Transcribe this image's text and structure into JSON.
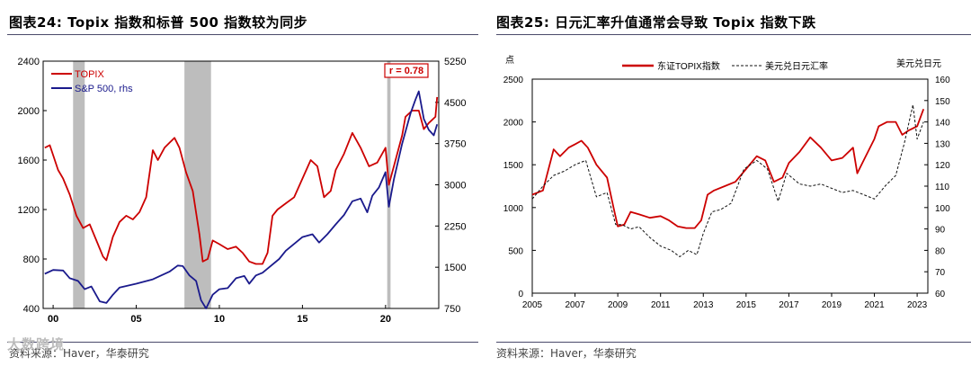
{
  "panel_left": {
    "title": "图表24:   Topix 指数和标普 500 指数较为同步",
    "source": "资料来源：Haver，华泰研究",
    "watermark": "大数跨境"
  },
  "panel_right": {
    "title": "图表25:   日元汇率升值通常会导致 Topix 指数下跌",
    "source": "资料来源：Haver，华泰研究"
  },
  "colors": {
    "red": "#cc0000",
    "navy": "#1a1a8c",
    "black": "#111111",
    "recession": "#bdbdbd",
    "rule": "#4a4a6a"
  },
  "chart_data": [
    {
      "type": "line",
      "title": "Topix 指数和标普 500 指数较为同步",
      "x_ticks": [
        "00",
        "05",
        "10",
        "15",
        "20"
      ],
      "x_tick_values": [
        2000,
        2005,
        2010,
        2015,
        2020
      ],
      "xlim": [
        1999.4,
        2023.2
      ],
      "ylim_left": [
        400,
        2400
      ],
      "yticks_left": [
        "400",
        "800",
        "1200",
        "1600",
        "2000",
        "2400"
      ],
      "ylim_right": [
        750,
        5250
      ],
      "yticks_right": [
        "750",
        "1500",
        "2250",
        "3000",
        "3750",
        "4500",
        "5250"
      ],
      "annotation": "r = 0.78",
      "recession_bands": [
        [
          2001.2,
          2001.9
        ],
        [
          2007.9,
          2009.5
        ],
        [
          2020.1,
          2020.3
        ]
      ],
      "series": [
        {
          "name": "TOPIX",
          "axis": "left",
          "color": "#cc0000",
          "x": [
            1999.5,
            1999.8,
            2000.0,
            2000.3,
            2000.6,
            2001.0,
            2001.4,
            2001.8,
            2002.2,
            2002.6,
            2003.0,
            2003.2,
            2003.6,
            2004.0,
            2004.4,
            2004.8,
            2005.2,
            2005.6,
            2006.0,
            2006.3,
            2006.7,
            2007.0,
            2007.3,
            2007.6,
            2008.0,
            2008.4,
            2008.8,
            2009.0,
            2009.3,
            2009.6,
            2010.0,
            2010.5,
            2011.0,
            2011.4,
            2011.8,
            2012.2,
            2012.6,
            2012.9,
            2013.2,
            2013.5,
            2014.0,
            2014.5,
            2015.0,
            2015.5,
            2015.9,
            2016.3,
            2016.7,
            2017.0,
            2017.5,
            2018.0,
            2018.5,
            2019.0,
            2019.5,
            2020.0,
            2020.2,
            2020.5,
            2021.0,
            2021.2,
            2021.6,
            2022.0,
            2022.3,
            2022.6,
            2023.0,
            2023.1
          ],
          "values": [
            1700,
            1720,
            1640,
            1520,
            1450,
            1320,
            1150,
            1050,
            1080,
            950,
            820,
            790,
            980,
            1100,
            1150,
            1120,
            1180,
            1300,
            1680,
            1600,
            1700,
            1740,
            1780,
            1700,
            1500,
            1350,
            1000,
            780,
            800,
            950,
            920,
            880,
            900,
            850,
            780,
            760,
            760,
            850,
            1150,
            1200,
            1250,
            1300,
            1450,
            1600,
            1550,
            1300,
            1350,
            1520,
            1650,
            1820,
            1700,
            1550,
            1580,
            1700,
            1400,
            1550,
            1800,
            1950,
            2000,
            2000,
            1850,
            1900,
            1950,
            2110
          ]
        },
        {
          "name": "S&P 500, rhs",
          "axis": "right",
          "color": "#1a1a8c",
          "x": [
            1999.5,
            2000.0,
            2000.6,
            2001.0,
            2001.5,
            2001.9,
            2002.3,
            2002.8,
            2003.2,
            2003.6,
            2004.0,
            2005.0,
            2006.0,
            2007.0,
            2007.5,
            2007.8,
            2008.2,
            2008.6,
            2008.9,
            2009.2,
            2009.6,
            2010.0,
            2010.5,
            2011.0,
            2011.5,
            2011.8,
            2012.2,
            2012.6,
            2013.0,
            2013.6,
            2014.0,
            2014.6,
            2015.0,
            2015.6,
            2016.0,
            2016.5,
            2017.0,
            2017.5,
            2018.0,
            2018.5,
            2018.9,
            2019.2,
            2019.6,
            2020.0,
            2020.2,
            2020.5,
            2021.0,
            2021.5,
            2021.8,
            2022.0,
            2022.3,
            2022.6,
            2022.9,
            2023.1
          ],
          "values": [
            1380,
            1450,
            1440,
            1300,
            1250,
            1100,
            1150,
            880,
            850,
            1000,
            1130,
            1200,
            1280,
            1420,
            1530,
            1520,
            1350,
            1250,
            900,
            750,
            1000,
            1100,
            1120,
            1300,
            1340,
            1200,
            1350,
            1400,
            1500,
            1650,
            1800,
            1950,
            2050,
            2100,
            1950,
            2100,
            2280,
            2450,
            2700,
            2750,
            2500,
            2800,
            2950,
            3230,
            2600,
            3100,
            3750,
            4300,
            4550,
            4700,
            4200,
            4000,
            3900,
            4100
          ]
        }
      ],
      "legend": [
        "TOPIX",
        "S&P 500, rhs"
      ],
      "legend_position": "top-left"
    },
    {
      "type": "line",
      "title": "日元汇率升值通常会导致 Topix 指数下跌",
      "left_axis_title": "点",
      "right_axis_title": "美元兑日元",
      "x_ticks": [
        "2005",
        "2007",
        "2009",
        "2011",
        "2013",
        "2015",
        "2017",
        "2019",
        "2021",
        "2023"
      ],
      "x_tick_values": [
        2005,
        2007,
        2009,
        2011,
        2013,
        2015,
        2017,
        2019,
        2021,
        2023
      ],
      "xlim": [
        2005,
        2023.5
      ],
      "ylim_left": [
        0,
        2500
      ],
      "yticks_left": [
        "0",
        "500",
        "1000",
        "1500",
        "2000",
        "2500"
      ],
      "ylim_right": [
        60,
        160
      ],
      "yticks_right": [
        "60",
        "70",
        "80",
        "90",
        "100",
        "110",
        "120",
        "130",
        "140",
        "150",
        "160"
      ],
      "series": [
        {
          "name": "东证TOPIX指数",
          "axis": "left",
          "color": "#cc0000",
          "x": [
            2005.0,
            2005.5,
            2006.0,
            2006.3,
            2006.7,
            2007.0,
            2007.3,
            2007.6,
            2008.0,
            2008.5,
            2008.8,
            2009.0,
            2009.3,
            2009.6,
            2010.0,
            2010.5,
            2011.0,
            2011.4,
            2011.8,
            2012.2,
            2012.6,
            2012.9,
            2013.2,
            2013.5,
            2014.0,
            2014.5,
            2015.0,
            2015.5,
            2015.9,
            2016.3,
            2016.7,
            2017.0,
            2017.5,
            2018.0,
            2018.5,
            2019.0,
            2019.5,
            2020.0,
            2020.2,
            2020.5,
            2021.0,
            2021.2,
            2021.6,
            2022.0,
            2022.3,
            2022.6,
            2023.0,
            2023.3
          ],
          "values": [
            1150,
            1200,
            1680,
            1600,
            1700,
            1740,
            1780,
            1700,
            1500,
            1350,
            1000,
            780,
            800,
            950,
            920,
            880,
            900,
            850,
            780,
            760,
            760,
            850,
            1150,
            1200,
            1250,
            1300,
            1450,
            1600,
            1550,
            1300,
            1350,
            1520,
            1650,
            1820,
            1700,
            1550,
            1580,
            1700,
            1400,
            1550,
            1800,
            1950,
            2000,
            2000,
            1850,
            1900,
            1950,
            2150
          ]
        },
        {
          "name": "美元兑日元汇率",
          "axis": "right",
          "color": "#111111",
          "dashed": true,
          "x": [
            2005.0,
            2005.5,
            2006.0,
            2006.5,
            2007.0,
            2007.5,
            2008.0,
            2008.5,
            2008.9,
            2009.2,
            2009.6,
            2010.0,
            2010.5,
            2011.0,
            2011.5,
            2011.9,
            2012.3,
            2012.7,
            2013.0,
            2013.4,
            2013.8,
            2014.3,
            2014.9,
            2015.5,
            2016.0,
            2016.5,
            2016.9,
            2017.5,
            2018.0,
            2018.5,
            2019.0,
            2019.5,
            2020.0,
            2020.5,
            2021.0,
            2021.5,
            2022.0,
            2022.4,
            2022.8,
            2023.0,
            2023.3
          ],
          "values": [
            104,
            110,
            115,
            117,
            120,
            122,
            105,
            107,
            92,
            92,
            90,
            91,
            86,
            82,
            80,
            77,
            80,
            78,
            88,
            98,
            99,
            102,
            118,
            122,
            118,
            103,
            116,
            111,
            110,
            111,
            109,
            107,
            108,
            106,
            104,
            110,
            115,
            130,
            148,
            132,
            140
          ]
        }
      ],
      "legend": [
        "东证TOPIX指数",
        "美元兑日元汇率"
      ],
      "legend_position": "top-center"
    }
  ]
}
